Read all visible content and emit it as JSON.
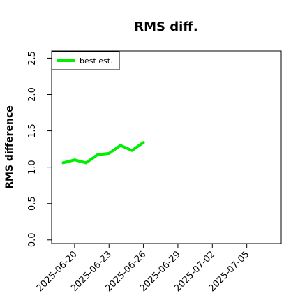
{
  "chart_data": {
    "type": "line",
    "title": "RMS diff.",
    "ylabel": "RMS difference",
    "xlabel": "",
    "x": [
      "2025-06-19",
      "2025-06-20",
      "2025-06-21",
      "2025-06-22",
      "2025-06-23",
      "2025-06-24",
      "2025-06-25",
      "2025-06-26"
    ],
    "series": [
      {
        "name": "best est.",
        "color": "#00ee00",
        "values": [
          1.06,
          1.1,
          1.06,
          1.17,
          1.19,
          1.3,
          1.23,
          1.34
        ]
      }
    ],
    "xlim": [
      "2025-06-18",
      "2025-07-08"
    ],
    "ylim": [
      -0.05,
      2.6
    ],
    "x_ticks": [
      "2025-06-20",
      "2025-06-23",
      "2025-06-26",
      "2025-06-29",
      "2025-07-02",
      "2025-07-05"
    ],
    "y_ticks": [
      "0.0",
      "0.5",
      "1.0",
      "1.5",
      "2.0",
      "2.5"
    ],
    "y_tick_values": [
      0.0,
      0.5,
      1.0,
      1.5,
      2.0,
      2.5
    ],
    "grid": false,
    "legend_position": "top-left"
  }
}
